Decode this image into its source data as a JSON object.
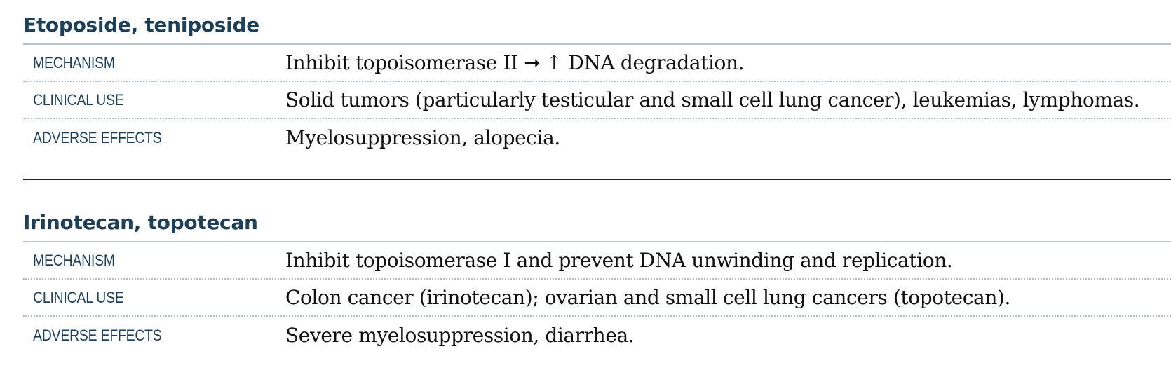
{
  "sections": [
    {
      "title": "Etoposide, teniposide",
      "rows": [
        {
          "label": "MECHANISM",
          "value": "Inhibit topoisomerase II ➞ ↑ DNA degradation."
        },
        {
          "label": "CLINICAL USE",
          "value": "Solid tumors (particularly testicular and small cell lung cancer), leukemias, lymphomas."
        },
        {
          "label": "ADVERSE EFFECTS",
          "value": "Myelosuppression, alopecia."
        }
      ]
    },
    {
      "title": "Irinotecan, topotecan",
      "rows": [
        {
          "label": "MECHANISM",
          "value": "Inhibit topoisomerase I and prevent DNA unwinding and replication."
        },
        {
          "label": "CLINICAL USE",
          "value": "Colon cancer (irinotecan); ovarian and small cell lung cancers (topotecan)."
        },
        {
          "label": "ADVERSE EFFECTS",
          "value": "Severe myelosuppression, diarrhea."
        }
      ]
    }
  ]
}
